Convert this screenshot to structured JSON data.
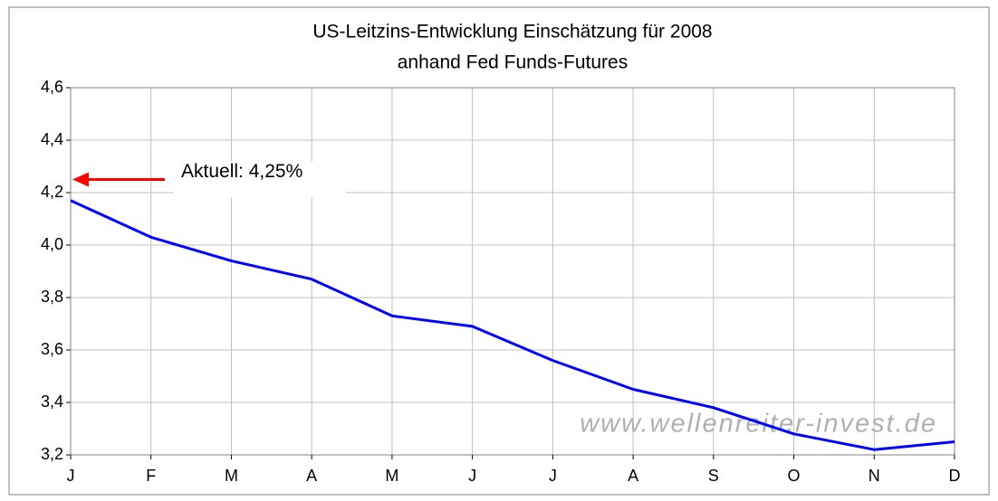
{
  "chart_data": {
    "type": "line",
    "title": "US-Leitzins-Entwicklung Einschätzung für 2008",
    "subtitle": "anhand Fed Funds-Futures",
    "categories": [
      "J",
      "F",
      "M",
      "A",
      "M",
      "J",
      "J",
      "A",
      "S",
      "O",
      "N",
      "D"
    ],
    "values": [
      4.17,
      4.03,
      3.94,
      3.87,
      3.73,
      3.69,
      3.56,
      3.45,
      3.38,
      3.28,
      3.22,
      3.25
    ],
    "color": "#0000ff",
    "ylim": [
      3.2,
      4.6
    ],
    "yticks": [
      {
        "value": 3.2,
        "label": "3,2"
      },
      {
        "value": 3.4,
        "label": "3,4"
      },
      {
        "value": 3.6,
        "label": "3,6"
      },
      {
        "value": 3.8,
        "label": "3,8"
      },
      {
        "value": 4.0,
        "label": "4,0"
      },
      {
        "value": 4.2,
        "label": "4,2"
      },
      {
        "value": 4.4,
        "label": "4,4"
      },
      {
        "value": 4.6,
        "label": "4,6"
      }
    ],
    "grid": true,
    "annotation": {
      "text": "Aktuell: 4,25%",
      "value": 4.25,
      "color": "#ff0000"
    },
    "watermark": "www.wellenreiter-invest.de"
  }
}
